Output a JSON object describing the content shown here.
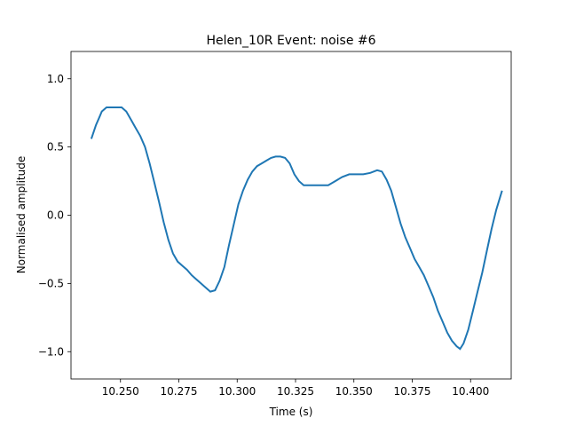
{
  "chart_data": {
    "type": "line",
    "title": "Helen_10R Event: noise #6",
    "xlabel": "Time (s)",
    "ylabel": "Normalised amplitude",
    "xlim": [
      10.2288,
      10.4174
    ],
    "ylim": [
      -1.2,
      1.2
    ],
    "grid": false,
    "line_color": "#1f77b4",
    "x_ticks": [
      10.25,
      10.275,
      10.3,
      10.325,
      10.35,
      10.375,
      10.4
    ],
    "x_tick_labels": [
      "10.250",
      "10.275",
      "10.300",
      "10.325",
      "10.350",
      "10.375",
      "10.400"
    ],
    "y_ticks": [
      1.0,
      0.5,
      0.0,
      -0.5,
      -1.0
    ],
    "y_tick_labels": [
      "1.0",
      "0.5",
      "0.0",
      "−0.5",
      "−1.0"
    ],
    "series": [
      {
        "x": [
          10.2375,
          10.2395,
          10.241,
          10.242,
          10.244,
          10.248,
          10.2505,
          10.2525,
          10.2545,
          10.2565,
          10.2585,
          10.2605,
          10.2625,
          10.2645,
          10.2665,
          10.2685,
          10.2705,
          10.2725,
          10.2745,
          10.2765,
          10.2785,
          10.2805,
          10.2825,
          10.2845,
          10.2865,
          10.2885,
          10.2905,
          10.2925,
          10.2945,
          10.2965,
          10.2985,
          10.3005,
          10.3025,
          10.3045,
          10.3065,
          10.3085,
          10.3105,
          10.3125,
          10.3145,
          10.3165,
          10.3185,
          10.3205,
          10.3225,
          10.3245,
          10.3265,
          10.3285,
          10.3305,
          10.333,
          10.336,
          10.339,
          10.342,
          10.345,
          10.348,
          10.351,
          10.354,
          10.357,
          10.36,
          10.362,
          10.364,
          10.366,
          10.368,
          10.37,
          10.372,
          10.374,
          10.376,
          10.378,
          10.38,
          10.382,
          10.384,
          10.386,
          10.388,
          10.39,
          10.392,
          10.394,
          10.3955,
          10.397,
          10.399,
          10.401,
          10.403,
          10.405,
          10.407,
          10.409,
          10.411,
          10.4135
        ],
        "y": [
          0.56,
          0.66,
          0.72,
          0.76,
          0.79,
          0.79,
          0.79,
          0.76,
          0.7,
          0.64,
          0.58,
          0.5,
          0.38,
          0.24,
          0.1,
          -0.05,
          -0.18,
          -0.28,
          -0.34,
          -0.37,
          -0.4,
          -0.44,
          -0.47,
          -0.5,
          -0.53,
          -0.56,
          -0.55,
          -0.48,
          -0.38,
          -0.22,
          -0.07,
          0.08,
          0.18,
          0.26,
          0.32,
          0.36,
          0.38,
          0.4,
          0.42,
          0.43,
          0.43,
          0.42,
          0.38,
          0.3,
          0.25,
          0.22,
          0.22,
          0.22,
          0.22,
          0.22,
          0.25,
          0.28,
          0.3,
          0.3,
          0.3,
          0.31,
          0.33,
          0.32,
          0.26,
          0.18,
          0.06,
          -0.06,
          -0.16,
          -0.24,
          -0.32,
          -0.38,
          -0.44,
          -0.52,
          -0.6,
          -0.7,
          -0.78,
          -0.86,
          -0.92,
          -0.96,
          -0.98,
          -0.94,
          -0.84,
          -0.7,
          -0.56,
          -0.42,
          -0.26,
          -0.1,
          0.04,
          0.18
        ]
      }
    ]
  }
}
